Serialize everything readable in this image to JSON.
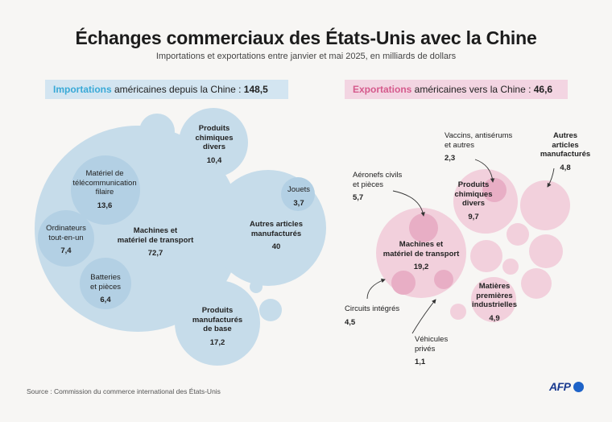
{
  "title": "Échanges commerciaux des États-Unis avec la Chine",
  "subtitle": "Importations et exportations entre janvier et mai 2025, en milliards de dollars",
  "colors": {
    "imports": "#c6dcea",
    "imports_inner": "#b3d0e4",
    "imports_accent": "#39a9d7",
    "exports": "#f2d0dc",
    "exports_inner": "#e8aec5",
    "exports_accent": "#d55a8c"
  },
  "chart_data": [
    {
      "type": "bubble",
      "title_kw": "Importations",
      "title_rest": " américaines depuis la Chine : ",
      "total": "148,5",
      "unit": "milliards de dollars",
      "categories": [
        {
          "name": "Machines et matériel de transport",
          "value": "72,7"
        },
        {
          "name": "Matériel de télécommunication filaire",
          "value": "13,6",
          "parent": "Machines et matériel de transport"
        },
        {
          "name": "Ordinateurs tout-en-un",
          "value": "7,4",
          "parent": "Machines et matériel de transport"
        },
        {
          "name": "Batteries et pièces",
          "value": "6,4",
          "parent": "Machines et matériel de transport"
        },
        {
          "name": "Autres articles manufacturés",
          "value": "40"
        },
        {
          "name": "Jouets",
          "value": "3,7",
          "parent": "Autres articles manufacturés"
        },
        {
          "name": "Produits manufacturés de base",
          "value": "17,2"
        },
        {
          "name": "Produits chimiques divers",
          "value": "10,4"
        }
      ]
    },
    {
      "type": "bubble",
      "title_kw": "Exportations",
      "title_rest": " américaines vers la Chine : ",
      "total": "46,6",
      "unit": "milliards de dollars",
      "categories": [
        {
          "name": "Machines et matériel de transport",
          "value": "19,2"
        },
        {
          "name": "Aéronefs civils et pièces",
          "value": "5,7",
          "parent": "Machines et matériel de transport"
        },
        {
          "name": "Circuits intégrés",
          "value": "4,5",
          "parent": "Machines et matériel de transport"
        },
        {
          "name": "Véhicules privés",
          "value": "1,1",
          "parent": "Machines et matériel de transport"
        },
        {
          "name": "Produits chimiques divers",
          "value": "9,7"
        },
        {
          "name": "Vaccins, antisérums et autres",
          "value": "2,3",
          "parent": "Produits chimiques divers"
        },
        {
          "name": "Matières premières industrielles",
          "value": "4,9"
        },
        {
          "name": "Autres articles manufacturés",
          "value": "4,8"
        }
      ]
    }
  ],
  "labels": {
    "imp_chem": {
      "l1": "Produits",
      "l2": "chimiques",
      "l3": "divers",
      "v": "10,4"
    },
    "imp_telecom": {
      "l1": "Matériel de",
      "l2": "télécommunication",
      "l3": "filaire",
      "v": "13,6"
    },
    "imp_comp": {
      "l1": "Ordinateurs",
      "l2": "tout-en-un",
      "v": "7,4"
    },
    "imp_mach": {
      "l1": "Machines et",
      "l2": "matériel de transport",
      "v": "72,7"
    },
    "imp_batt": {
      "l1": "Batteries",
      "l2": "et pièces",
      "v": "6,4"
    },
    "imp_toys": {
      "l1": "Jouets",
      "v": "3,7"
    },
    "imp_other": {
      "l1": "Autres articles",
      "l2": "manufacturés",
      "v": "40"
    },
    "imp_basic": {
      "l1": "Produits",
      "l2": "manufacturés",
      "l3": "de base",
      "v": "17,2"
    },
    "exp_aero": {
      "l1": "Aéronefs civils",
      "l2": "et pièces",
      "v": "5,7"
    },
    "exp_vacc": {
      "l1": "Vaccins, antisérums",
      "l2": "et autres",
      "v": "2,3"
    },
    "exp_other": {
      "l1": "Autres",
      "l2": "articles",
      "l3": "manufacturés",
      "v": "4,8"
    },
    "exp_chem": {
      "l1": "Produits",
      "l2": "chimiques",
      "l3": "divers",
      "v": "9,7"
    },
    "exp_mach": {
      "l1": "Machines et",
      "l2": "matériel de transport",
      "v": "19,2"
    },
    "exp_raw": {
      "l1": "Matières",
      "l2": "premières",
      "l3": "industrielles",
      "v": "4,9"
    },
    "exp_ic": {
      "l1": "Circuits intégrés",
      "v": "4,5"
    },
    "exp_veh": {
      "l1": "Véhicules",
      "l2": "privés",
      "v": "1,1"
    }
  },
  "source": "Source : Commission du commerce international des États-Unis",
  "logo": "AFP"
}
